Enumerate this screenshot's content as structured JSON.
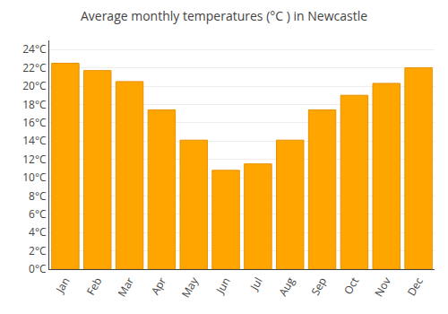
{
  "chart_data": {
    "type": "bar",
    "title": "Average monthly temperatures (°C ) in Newcastle",
    "categories": [
      "Jan",
      "Feb",
      "Mar",
      "Apr",
      "May",
      "Jun",
      "Jul",
      "Aug",
      "Sep",
      "Oct",
      "Nov",
      "Dec"
    ],
    "values": [
      22.5,
      21.7,
      20.5,
      17.4,
      14.1,
      10.8,
      11.5,
      14.1,
      17.4,
      19.0,
      20.3,
      22.0
    ],
    "color": "#FFA500",
    "ylim": [
      0,
      25
    ],
    "yticks": [
      {
        "value": 0,
        "label": "0°C"
      },
      {
        "value": 2,
        "label": "2°C"
      },
      {
        "value": 4,
        "label": "4°C"
      },
      {
        "value": 6,
        "label": "6°C"
      },
      {
        "value": 8,
        "label": "8°C"
      },
      {
        "value": 10,
        "label": "10°C"
      },
      {
        "value": 12,
        "label": "12°C"
      },
      {
        "value": 14,
        "label": "14°C"
      },
      {
        "value": 16,
        "label": "16°C"
      },
      {
        "value": 18,
        "label": "18°C"
      },
      {
        "value": 20,
        "label": "20°C"
      },
      {
        "value": 22,
        "label": "22°C"
      },
      {
        "value": 24,
        "label": "24°C"
      }
    ],
    "grid": true
  }
}
